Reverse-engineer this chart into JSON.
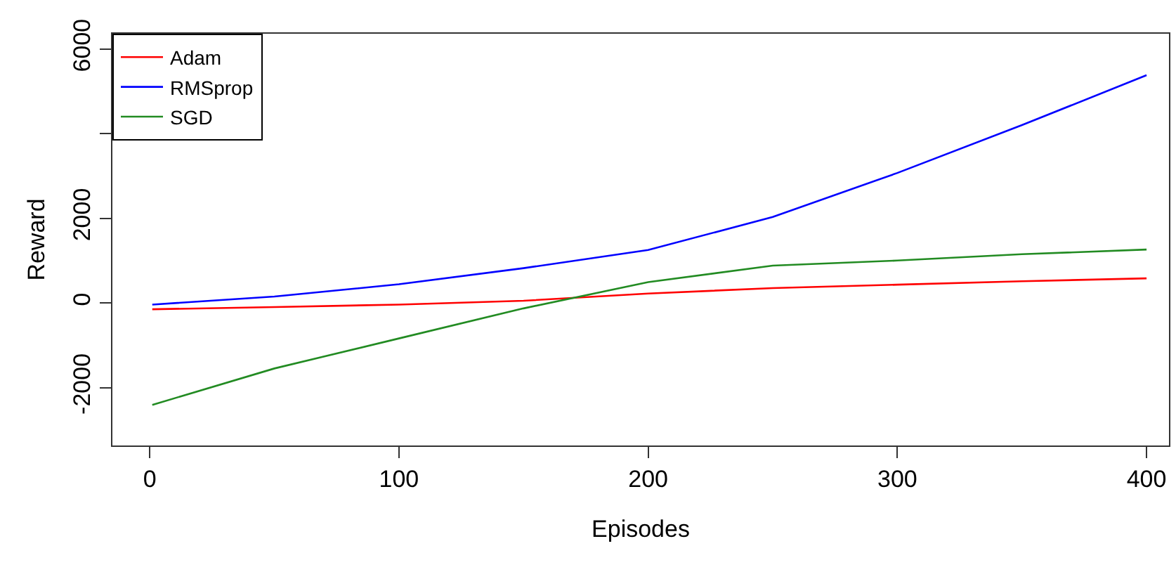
{
  "chart_data": {
    "type": "line",
    "xlabel": "Episodes",
    "ylabel": "Reward",
    "x": [
      1,
      50,
      100,
      150,
      200,
      250,
      300,
      350,
      400
    ],
    "series": [
      {
        "name": "Adam",
        "color": "#ff0000",
        "values": [
          -150,
          -100,
          -40,
          50,
          220,
          350,
          430,
          510,
          580
        ]
      },
      {
        "name": "RMSprop",
        "color": "#0000ff",
        "values": [
          -40,
          150,
          440,
          820,
          1250,
          2030,
          3070,
          4200,
          5380
        ]
      },
      {
        "name": "SGD",
        "color": "#228b22",
        "values": [
          -2410,
          -1550,
          -840,
          -130,
          490,
          880,
          1000,
          1150,
          1260
        ]
      }
    ],
    "xlim": [
      -15,
      409
    ],
    "ylim": [
      -3370,
      6360
    ],
    "xticks": [
      0,
      100,
      200,
      300,
      400
    ],
    "yticks": [
      -2000,
      0,
      2000,
      {
        "value": 4000,
        "label": null
      },
      6000
    ],
    "legend": "top left",
    "marker": "none",
    "line_style": "solid"
  }
}
